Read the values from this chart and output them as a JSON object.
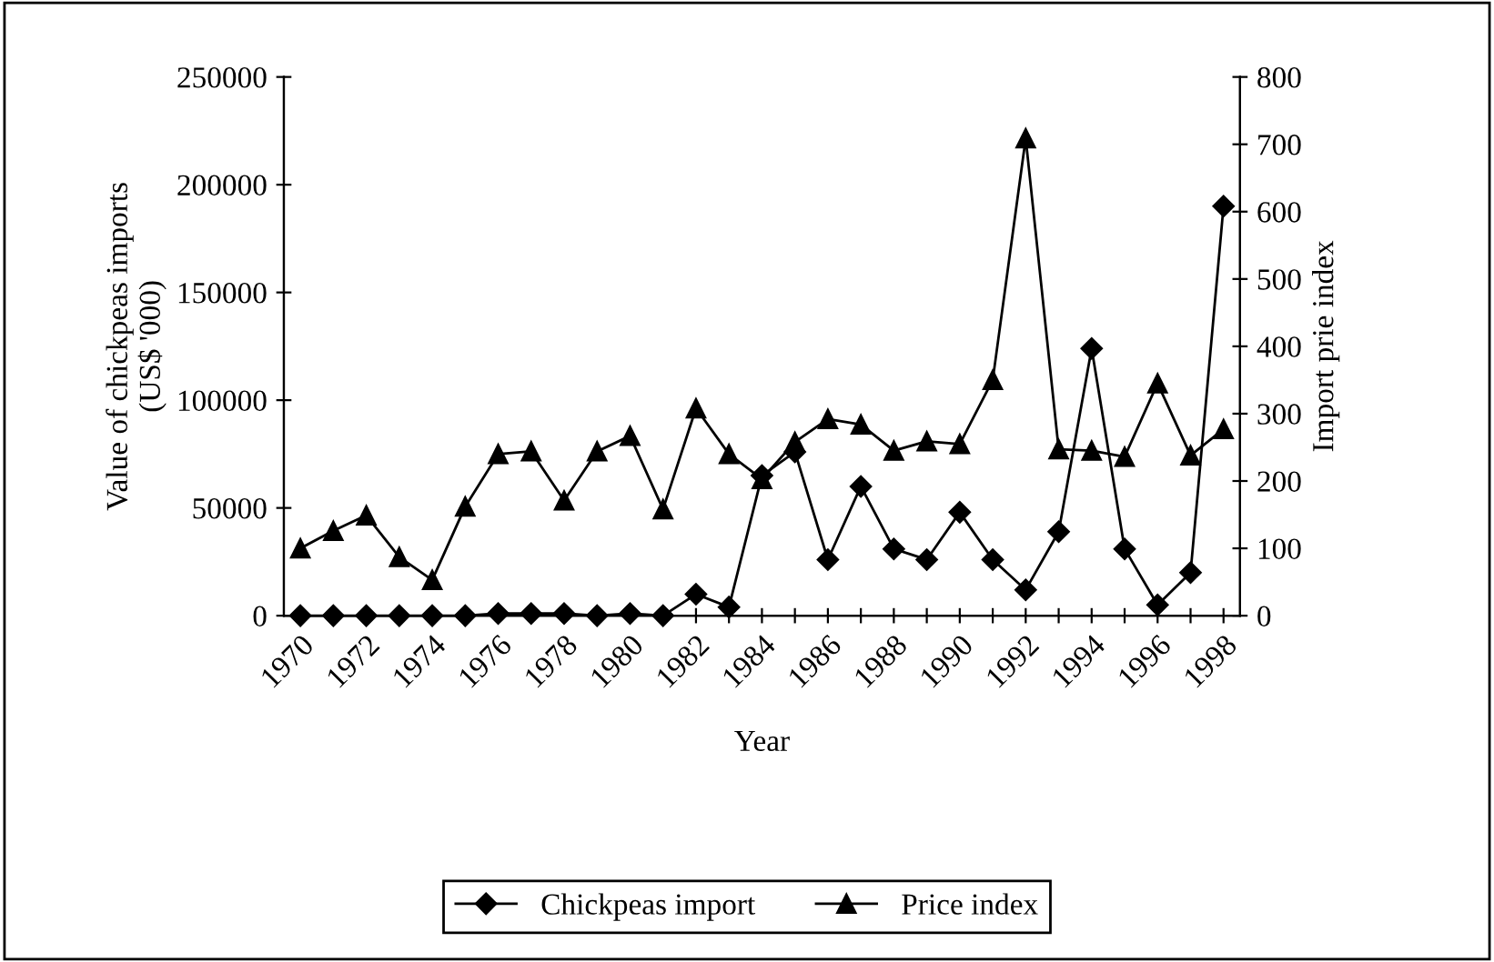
{
  "chart_data": {
    "type": "line",
    "xlabel": "Year",
    "ylabel": "Value of chickpeas imports\n(US$ '000)",
    "y2label": "Import prie index",
    "categories": [
      "1970",
      null,
      "1972",
      null,
      "1974",
      null,
      "1976",
      null,
      "1978",
      null,
      "1980",
      null,
      "1982",
      null,
      "1984",
      null,
      "1986",
      null,
      "1988",
      null,
      "1990",
      null,
      "1992",
      null,
      "1994",
      null,
      "1996",
      null,
      "1998"
    ],
    "series": [
      {
        "name": "Chickpeas import",
        "color": "#000000",
        "marker": "diamond",
        "values": [
          0,
          0,
          0,
          0,
          0,
          0,
          1000,
          1000,
          1000,
          0,
          1000,
          0,
          10000,
          4000,
          65000,
          76000,
          26000,
          60000,
          31000,
          26000,
          48000,
          26000,
          12000,
          39000,
          124000,
          31000,
          5000,
          20000,
          190000
        ]
      },
      {
        "name": "Price index",
        "color": "#000000",
        "marker": "triangle",
        "axis": "y2",
        "values": [
          100,
          126,
          149,
          87,
          53,
          162,
          240,
          244,
          171,
          244,
          267,
          158,
          308,
          240,
          203,
          258,
          292,
          284,
          245,
          259,
          255,
          350,
          709,
          247,
          245,
          236,
          345,
          238,
          277
        ]
      }
    ],
    "ylim": [
      0,
      250000
    ],
    "yticks": [
      0,
      50000,
      100000,
      150000,
      200000,
      250000
    ],
    "y2lim": [
      0,
      800
    ],
    "y2ticks": [
      0,
      100,
      200,
      300,
      400,
      500,
      600,
      700,
      800
    ],
    "grid": false,
    "legend": "bottom",
    "line_style": "solid"
  }
}
